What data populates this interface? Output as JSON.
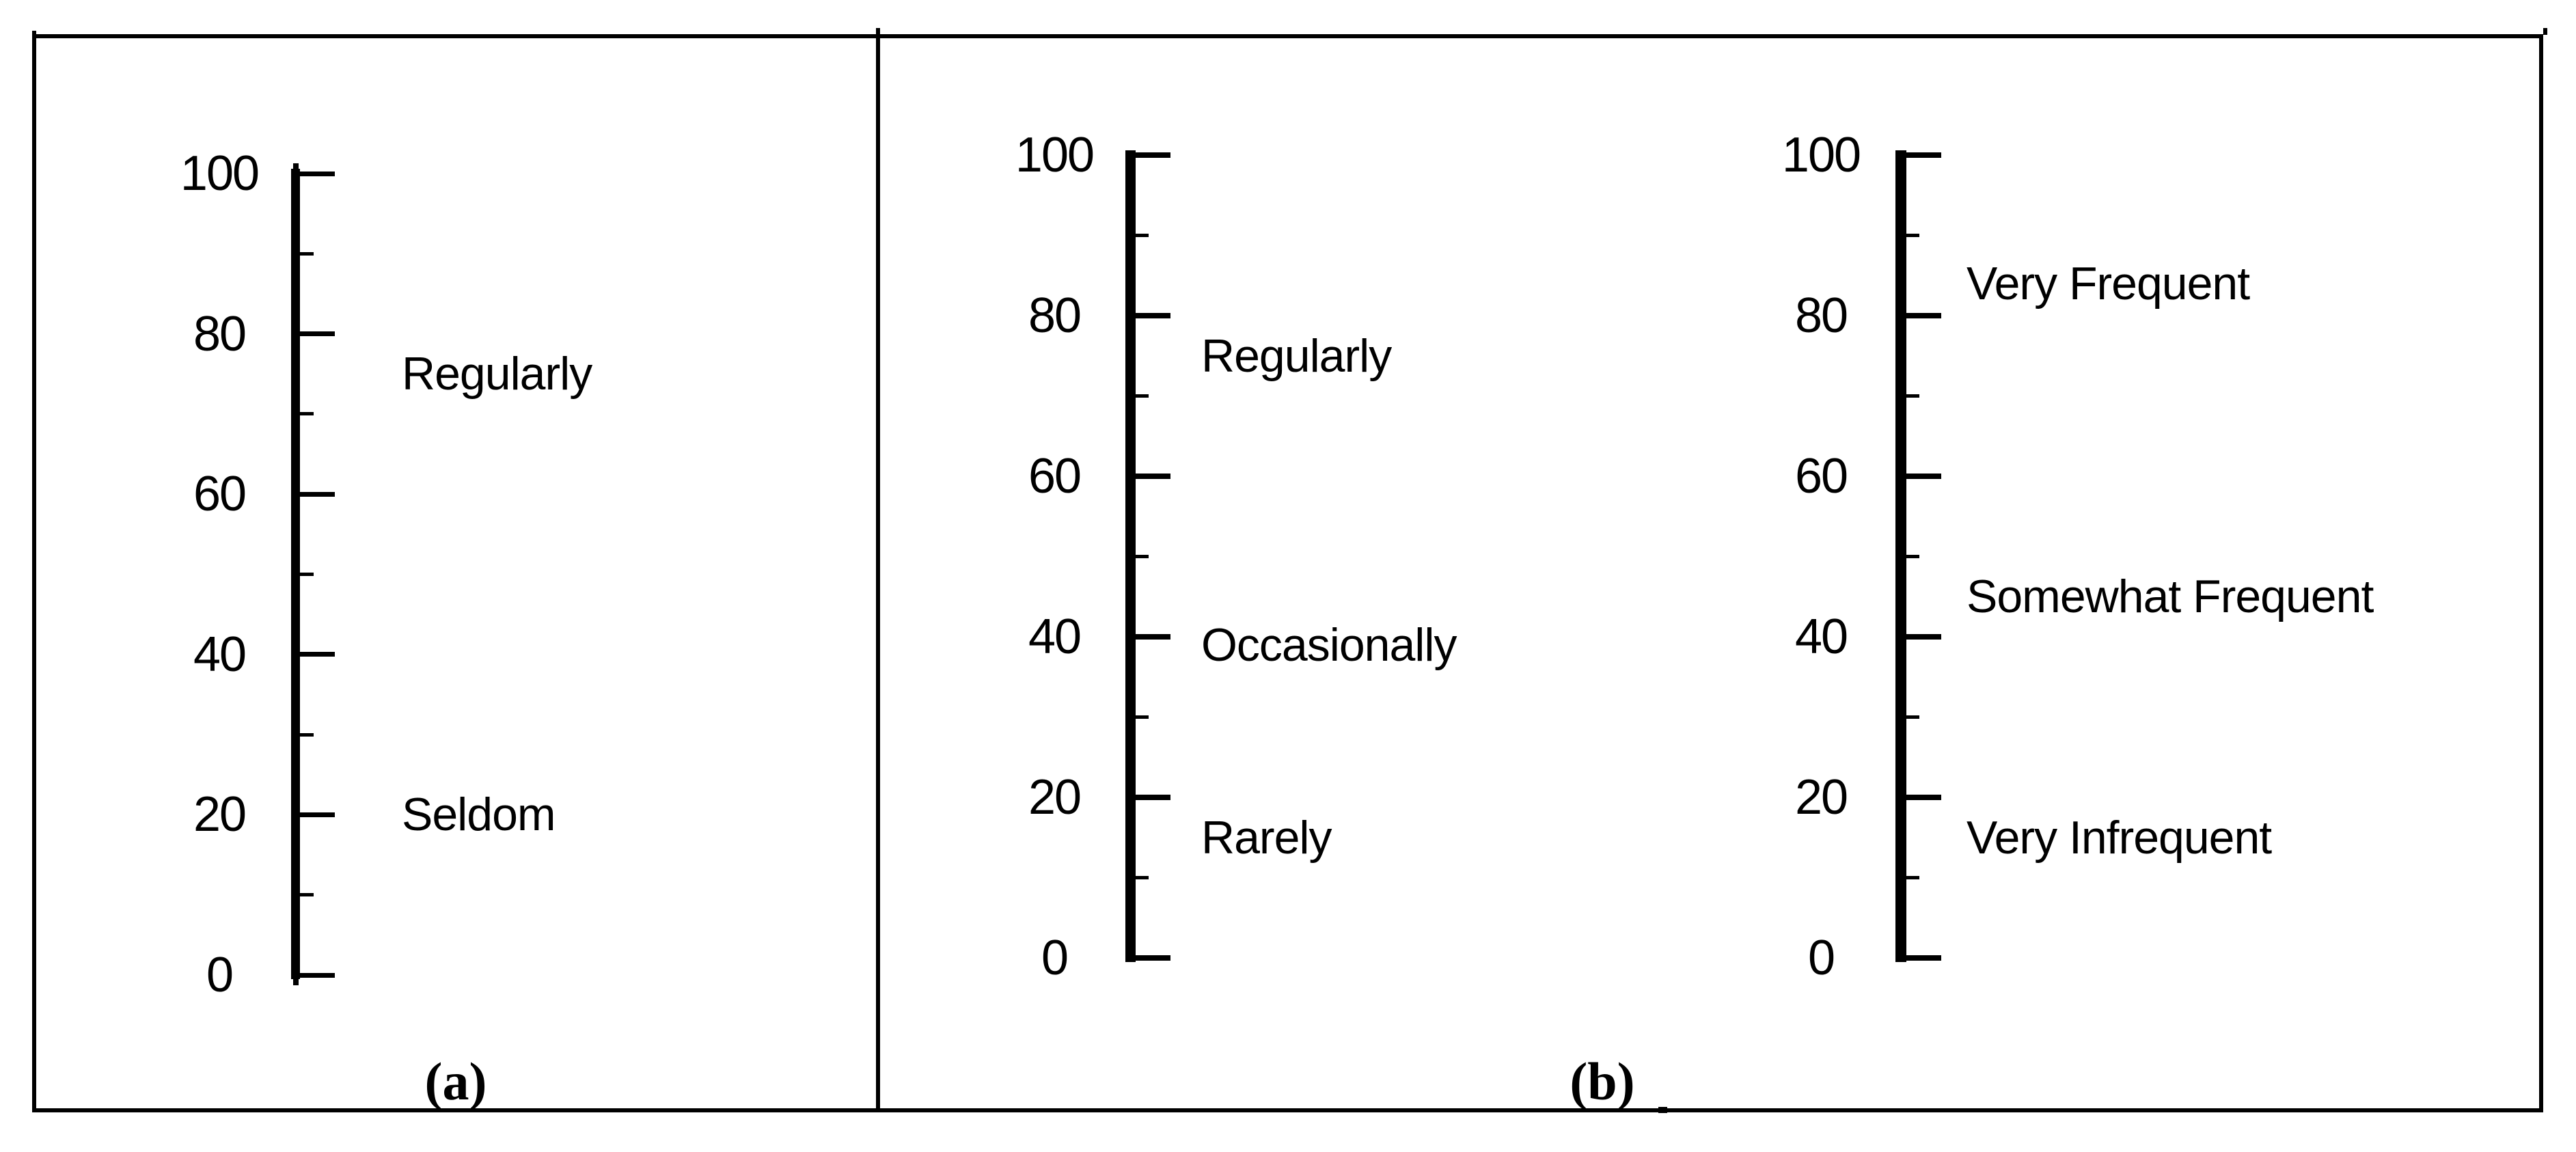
{
  "figure": {
    "description": "Two-panel figure of vertical 0-100 visual analog rating scales",
    "captions": {
      "a": "(a)",
      "b": "(b)"
    }
  },
  "chart_data": [
    {
      "type": "scale",
      "id": "a",
      "panel": "a",
      "orientation": "vertical",
      "axis": {
        "min": 0,
        "max": 100,
        "minor_step": 10,
        "major_step": 20,
        "grid": false
      },
      "major_ticks": [
        {
          "value": 100,
          "label": "100"
        },
        {
          "value": 80,
          "label": "80"
        },
        {
          "value": 60,
          "label": "60"
        },
        {
          "value": 40,
          "label": "40"
        },
        {
          "value": 20,
          "label": "20"
        },
        {
          "value": 0,
          "label": "0"
        }
      ],
      "minor_ticks": [
        90,
        70,
        50,
        30,
        10
      ],
      "annotations": [
        {
          "label": "Regularly",
          "value": 75
        },
        {
          "label": "Seldom",
          "value": 20
        }
      ]
    },
    {
      "type": "scale",
      "id": "b1",
      "panel": "b",
      "orientation": "vertical",
      "axis": {
        "min": 0,
        "max": 100,
        "minor_step": 10,
        "major_step": 20,
        "grid": false
      },
      "major_ticks": [
        {
          "value": 100,
          "label": "100"
        },
        {
          "value": 80,
          "label": "80"
        },
        {
          "value": 60,
          "label": "60"
        },
        {
          "value": 40,
          "label": "40"
        },
        {
          "value": 20,
          "label": "20"
        },
        {
          "value": 0,
          "label": "0"
        }
      ],
      "minor_ticks": [
        90,
        70,
        50,
        30,
        10
      ],
      "annotations": [
        {
          "label": "Regularly",
          "value": 75
        },
        {
          "label": "Occasionally",
          "value": 39
        },
        {
          "label": "Rarely",
          "value": 15
        }
      ]
    },
    {
      "type": "scale",
      "id": "b2",
      "panel": "b",
      "orientation": "vertical",
      "axis": {
        "min": 0,
        "max": 100,
        "minor_step": 10,
        "major_step": 20,
        "grid": false
      },
      "major_ticks": [
        {
          "value": 100,
          "label": "100"
        },
        {
          "value": 80,
          "label": "80"
        },
        {
          "value": 60,
          "label": "60"
        },
        {
          "value": 40,
          "label": "40"
        },
        {
          "value": 20,
          "label": "20"
        },
        {
          "value": 0,
          "label": "0"
        }
      ],
      "minor_ticks": [
        90,
        70,
        50,
        30,
        10
      ],
      "annotations": [
        {
          "label": "Very Frequent",
          "value": 84
        },
        {
          "label": "Somewhat Frequent",
          "value": 45
        },
        {
          "label": "Very Infrequent",
          "value": 15
        }
      ]
    }
  ]
}
